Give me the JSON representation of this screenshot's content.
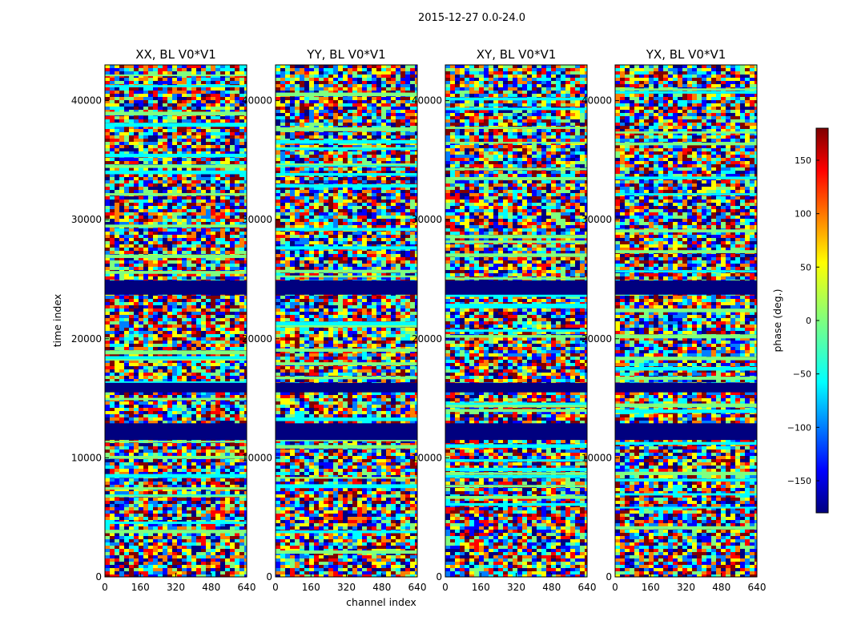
{
  "chart_data": {
    "type": "heatmap",
    "title": "2015-12-27 0.0-24.0",
    "xlabel": "channel index",
    "ylabel": "time index",
    "xlim": [
      0,
      640
    ],
    "ylim": [
      0,
      43000
    ],
    "x_ticks": [
      "0",
      "160",
      "320",
      "480",
      "640"
    ],
    "y_ticks": [
      "0",
      "10000",
      "20000",
      "30000",
      "40000"
    ],
    "y_tick_values": [
      0,
      10000,
      20000,
      30000,
      40000
    ],
    "panels": [
      {
        "title": "XX, BL V0*V1"
      },
      {
        "title": "YY, BL V0*V1"
      },
      {
        "title": "XY, BL V0*V1"
      },
      {
        "title": "YX, BL V0*V1"
      }
    ],
    "flagged_time_ranges": [
      [
        11500,
        12900
      ],
      [
        15500,
        16300
      ],
      [
        23700,
        24900
      ]
    ],
    "colorbar": {
      "label": "phase (deg.)",
      "range": [
        -180,
        180
      ],
      "ticks": [
        150,
        100,
        50,
        0,
        -50,
        -100,
        -150
      ],
      "tick_labels": [
        "150",
        "100",
        "50",
        "0",
        "−50",
        "−100",
        "−150"
      ],
      "colormap": "jet"
    }
  },
  "colors": {
    "flagged": "#00007f",
    "noise": [
      "#00007f",
      "#0000ff",
      "#007fff",
      "#00ffff",
      "#7fff7f",
      "#ffff00",
      "#ff7f00",
      "#ff0000",
      "#7f0000"
    ]
  }
}
